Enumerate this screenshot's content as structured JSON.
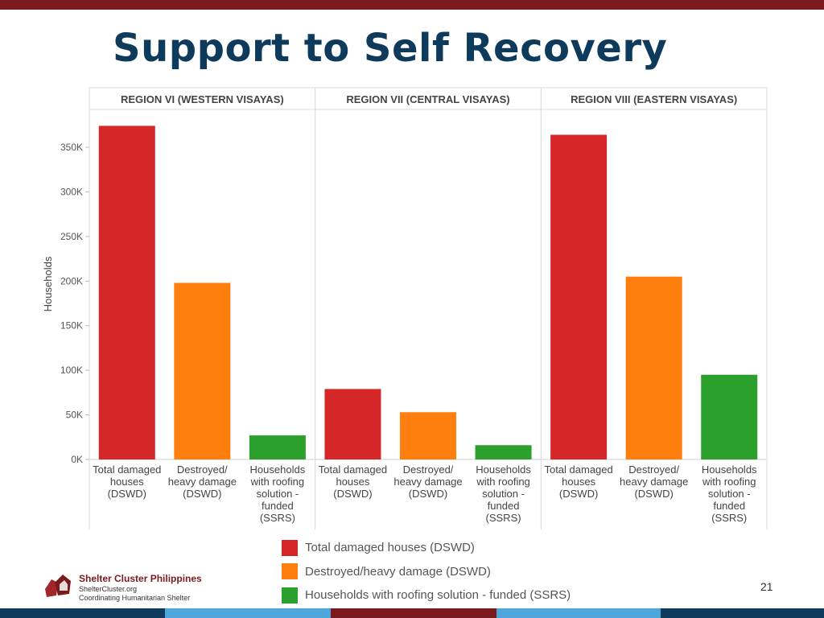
{
  "slide": {
    "title": "Support to Self Recovery",
    "page_number": "21"
  },
  "branding": {
    "org_name": "Shelter Cluster Philippines",
    "url": "ShelterCluster.org",
    "tagline": "Coordinating Humanitarian Shelter",
    "logo_icon": "hands-house-icon",
    "accent_color": "#7a1a1c",
    "title_color": "#0e3a5c",
    "bottom_bar_colors": [
      "#0e3a5c",
      "#4ea7dc",
      "#7a1a1c",
      "#4ea7dc",
      "#0e3a5c"
    ]
  },
  "legend": {
    "placement": "bottom",
    "items": [
      {
        "label": "Total damaged houses (DSWD)",
        "color": "#d62728"
      },
      {
        "label": "Destroyed/heavy damage (DSWD)",
        "color": "#ff7f0e"
      },
      {
        "label": "Households with roofing solution - funded  (SSRS)",
        "color": "#2ca02c"
      }
    ]
  },
  "chart_data": {
    "type": "bar",
    "ylabel": "Households",
    "xlabel": "",
    "ylim": [
      0,
      390000
    ],
    "yticks": [
      0,
      50000,
      100000,
      150000,
      200000,
      250000,
      300000,
      350000
    ],
    "ytick_labels": [
      "0K",
      "50K",
      "100K",
      "150K",
      "200K",
      "250K",
      "300K",
      "350K"
    ],
    "grid": false,
    "panels": [
      {
        "header": "REGION VI (WESTERN VISAYAS)",
        "categories": [
          [
            "Total damaged",
            "houses",
            "(DSWD)"
          ],
          [
            "Destroyed/",
            "heavy damage",
            "(DSWD)"
          ],
          [
            "Households",
            "with roofing",
            "solution -",
            "funded",
            "(SSRS)"
          ]
        ],
        "values": [
          374000,
          198000,
          27000
        ]
      },
      {
        "header": "REGION VII (CENTRAL VISAYAS)",
        "categories": [
          [
            "Total damaged",
            "houses",
            "(DSWD)"
          ],
          [
            "Destroyed/",
            "heavy damage",
            "(DSWD)"
          ],
          [
            "Households",
            "with roofing",
            "solution -",
            "funded",
            "(SSRS)"
          ]
        ],
        "values": [
          79000,
          53000,
          16000
        ]
      },
      {
        "header": "REGION VIII (EASTERN VISAYAS)",
        "categories": [
          [
            "Total damaged",
            "houses",
            "(DSWD)"
          ],
          [
            "Destroyed/",
            "heavy damage",
            "(DSWD)"
          ],
          [
            "Households",
            "with roofing",
            "solution -",
            "funded",
            "(SSRS)"
          ]
        ],
        "values": [
          364000,
          205000,
          95000
        ]
      }
    ],
    "series_colors": [
      "#d62728",
      "#ff7f0e",
      "#2ca02c"
    ]
  }
}
